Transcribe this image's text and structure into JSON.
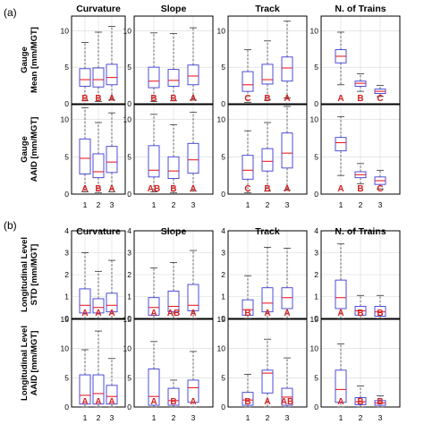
{
  "panel_labels": [
    "(a)",
    "(b)"
  ],
  "chart_data": {
    "type": "boxplot",
    "sections": [
      {
        "label": "(a)",
        "column_titles": [
          "Curvature",
          "Slope",
          "Track",
          "N. of Trains"
        ],
        "rows": [
          {
            "ylabel": [
              "Gauge",
              "Mean [mm/MGT]"
            ],
            "ylim": [
              0,
              12
            ],
            "yticks": [
              0,
              5,
              10
            ],
            "panels": [
              {
                "categories": [
                  "1",
                  "2",
                  "3"
                ],
                "letters": [
                  "B",
                  "B",
                  "A"
                ],
                "boxes": [
                  {
                    "whislo": 0.4,
                    "q1": 2.4,
                    "med": 3.3,
                    "q3": 4.8,
                    "whishi": 8.4
                  },
                  {
                    "whislo": 0.3,
                    "q1": 2.3,
                    "med": 3.3,
                    "q3": 4.9,
                    "whishi": 9.8
                  },
                  {
                    "whislo": 0.5,
                    "q1": 2.6,
                    "med": 3.6,
                    "q3": 5.4,
                    "whishi": 10.6
                  }
                ]
              },
              {
                "categories": [
                  "1",
                  "2",
                  "3"
                ],
                "letters": [
                  "B",
                  "B",
                  "A"
                ],
                "boxes": [
                  {
                    "whislo": 0.3,
                    "q1": 2.2,
                    "med": 3.1,
                    "q3": 5.0,
                    "whishi": 9.7
                  },
                  {
                    "whislo": 0.4,
                    "q1": 2.4,
                    "med": 3.2,
                    "q3": 4.7,
                    "whishi": 9.6
                  },
                  {
                    "whislo": 0.5,
                    "q1": 2.6,
                    "med": 3.8,
                    "q3": 5.3,
                    "whishi": 10.4
                  }
                ]
              },
              {
                "categories": [
                  "1",
                  "2",
                  "3"
                ],
                "letters": [
                  "C",
                  "B",
                  "A"
                ],
                "boxes": [
                  {
                    "whislo": 0.2,
                    "q1": 1.7,
                    "med": 2.6,
                    "q3": 4.4,
                    "whishi": 7.4
                  },
                  {
                    "whislo": 0.5,
                    "q1": 2.7,
                    "med": 3.3,
                    "q3": 5.4,
                    "whishi": 8.6
                  },
                  {
                    "whislo": 0.8,
                    "q1": 3.1,
                    "med": 4.9,
                    "q3": 6.4,
                    "whishi": 11.3
                  }
                ]
              },
              {
                "categories": [
                  "1",
                  "2",
                  "3"
                ],
                "letters": [
                  "A",
                  "B",
                  "C"
                ],
                "boxes": [
                  {
                    "whislo": 2.6,
                    "q1": 5.6,
                    "med": 6.5,
                    "q3": 7.4,
                    "whishi": 9.8
                  },
                  {
                    "whislo": 1.7,
                    "q1": 2.4,
                    "med": 2.8,
                    "q3": 3.1,
                    "whishi": 4.1
                  },
                  {
                    "whislo": 1.0,
                    "q1": 1.4,
                    "med": 1.7,
                    "q3": 2.0,
                    "whishi": 2.5
                  }
                ]
              }
            ]
          },
          {
            "ylabel": [
              "Gauge",
              "AAID [mm/MGT]"
            ],
            "ylim": [
              0,
              12
            ],
            "yticks": [
              0,
              5,
              10
            ],
            "panels": [
              {
                "categories": [
                  "1",
                  "2",
                  "3"
                ],
                "letters": [
                  "A",
                  "B",
                  "A"
                ],
                "boxes": [
                  {
                    "whislo": 0.3,
                    "q1": 2.7,
                    "med": 4.8,
                    "q3": 7.4,
                    "whishi": 11.6
                  },
                  {
                    "whislo": 0.2,
                    "q1": 2.2,
                    "med": 3.0,
                    "q3": 5.4,
                    "whishi": 9.6
                  },
                  {
                    "whislo": 0.3,
                    "q1": 2.9,
                    "med": 4.3,
                    "q3": 6.4,
                    "whishi": 10.9
                  }
                ]
              },
              {
                "categories": [
                  "1",
                  "2",
                  "3"
                ],
                "letters": [
                  "AB",
                  "B",
                  "A"
                ],
                "boxes": [
                  {
                    "whislo": 0.3,
                    "q1": 2.3,
                    "med": 3.2,
                    "q3": 6.5,
                    "whishi": 10.7
                  },
                  {
                    "whislo": 0.2,
                    "q1": 2.1,
                    "med": 3.1,
                    "q3": 5.0,
                    "whishi": 9.3
                  },
                  {
                    "whislo": 0.4,
                    "q1": 2.8,
                    "med": 4.6,
                    "q3": 6.8,
                    "whishi": 11.0
                  }
                ]
              },
              {
                "categories": [
                  "1",
                  "2",
                  "3"
                ],
                "letters": [
                  "C",
                  "B",
                  "A"
                ],
                "boxes": [
                  {
                    "whislo": 0.2,
                    "q1": 2.0,
                    "med": 3.2,
                    "q3": 5.2,
                    "whishi": 8.5
                  },
                  {
                    "whislo": 0.4,
                    "q1": 3.1,
                    "med": 4.4,
                    "q3": 6.1,
                    "whishi": 9.6
                  },
                  {
                    "whislo": 0.5,
                    "q1": 3.5,
                    "med": 5.5,
                    "q3": 8.2,
                    "whishi": 12.3
                  }
                ]
              },
              {
                "categories": [
                  "1",
                  "2",
                  "3"
                ],
                "letters": [
                  "A",
                  "B",
                  "C"
                ],
                "boxes": [
                  {
                    "whislo": 2.5,
                    "q1": 5.8,
                    "med": 6.9,
                    "q3": 7.6,
                    "whishi": 10.4
                  },
                  {
                    "whislo": 1.4,
                    "q1": 2.2,
                    "med": 2.6,
                    "q3": 3.0,
                    "whishi": 4.1
                  },
                  {
                    "whislo": 0.7,
                    "q1": 1.3,
                    "med": 1.8,
                    "q3": 2.3,
                    "whishi": 3.2
                  }
                ]
              }
            ]
          }
        ]
      },
      {
        "label": "(b)",
        "column_titles": [
          "Curvature",
          "Slope",
          "Track",
          "N. of Trains"
        ],
        "rows": [
          {
            "ylabel": [
              "Longitudinal Level",
              "STD [mm/MGT]"
            ],
            "ylim": [
              0,
              4
            ],
            "yticks": [
              0,
              1,
              2,
              3,
              4
            ],
            "panels": [
              {
                "categories": [
                  "1",
                  "2",
                  "3"
                ],
                "letters": [
                  "A",
                  "A",
                  "A"
                ],
                "boxes": [
                  {
                    "whislo": 0.0,
                    "q1": 0.25,
                    "med": 0.6,
                    "q3": 1.35,
                    "whishi": 3.0
                  },
                  {
                    "whislo": 0.0,
                    "q1": 0.25,
                    "med": 0.5,
                    "q3": 0.9,
                    "whishi": 2.15
                  },
                  {
                    "whislo": 0.0,
                    "q1": 0.3,
                    "med": 0.6,
                    "q3": 1.15,
                    "whishi": 2.65
                  }
                ]
              },
              {
                "categories": [
                  "1",
                  "2",
                  "3"
                ],
                "letters": [
                  "A",
                  "AB",
                  "A"
                ],
                "boxes": [
                  {
                    "whislo": 0.0,
                    "q1": 0.15,
                    "med": 0.5,
                    "q3": 0.95,
                    "whishi": 2.3
                  },
                  {
                    "whislo": 0.0,
                    "q1": 0.3,
                    "med": 0.55,
                    "q3": 1.25,
                    "whishi": 2.55
                  },
                  {
                    "whislo": 0.0,
                    "q1": 0.35,
                    "med": 0.6,
                    "q3": 1.55,
                    "whishi": 3.1
                  }
                ]
              },
              {
                "categories": [
                  "1",
                  "2",
                  "3"
                ],
                "letters": [
                  "B",
                  "A",
                  "A"
                ],
                "boxes": [
                  {
                    "whislo": 0.0,
                    "q1": 0.15,
                    "med": 0.4,
                    "q3": 0.85,
                    "whishi": 1.95
                  },
                  {
                    "whislo": 0.0,
                    "q1": 0.3,
                    "med": 0.7,
                    "q3": 1.4,
                    "whishi": 3.25
                  },
                  {
                    "whislo": 0.0,
                    "q1": 0.45,
                    "med": 0.95,
                    "q3": 1.4,
                    "whishi": 3.2
                  }
                ]
              },
              {
                "categories": [
                  "1",
                  "2",
                  "3"
                ],
                "letters": [
                  "A",
                  "B",
                  "B"
                ],
                "boxes": [
                  {
                    "whislo": 0.0,
                    "q1": 0.45,
                    "med": 0.95,
                    "q3": 1.75,
                    "whishi": 3.4
                  },
                  {
                    "whislo": 0.0,
                    "q1": 0.15,
                    "med": 0.35,
                    "q3": 0.55,
                    "whishi": 1.05
                  },
                  {
                    "whislo": 0.0,
                    "q1": 0.1,
                    "med": 0.3,
                    "q3": 0.55,
                    "whishi": 1.05
                  }
                ]
              }
            ]
          },
          {
            "ylabel": [
              "Longitudinal Level",
              "AAID [mm/MGT]"
            ],
            "ylim": [
              0,
              15
            ],
            "yticks": [
              0,
              5,
              10,
              15
            ],
            "panels": [
              {
                "categories": [
                  "1",
                  "2",
                  "3"
                ],
                "letters": [
                  "A",
                  "A",
                  "A"
                ],
                "boxes": [
                  {
                    "whislo": 0.0,
                    "q1": 0.5,
                    "med": 2.0,
                    "q3": 5.5,
                    "whishi": 9.8
                  },
                  {
                    "whislo": 0.0,
                    "q1": 0.5,
                    "med": 2.3,
                    "q3": 5.5,
                    "whishi": 13.0
                  },
                  {
                    "whislo": 0.0,
                    "q1": 0.5,
                    "med": 1.8,
                    "q3": 3.7,
                    "whishi": 8.3
                  }
                ]
              },
              {
                "categories": [
                  "1",
                  "2",
                  "3"
                ],
                "letters": [
                  "A",
                  "B",
                  "A"
                ],
                "boxes": [
                  {
                    "whislo": 0.0,
                    "q1": 0.3,
                    "med": 1.8,
                    "q3": 6.5,
                    "whishi": 11.2
                  },
                  {
                    "whislo": 0.0,
                    "q1": 0.3,
                    "med": 1.1,
                    "q3": 3.2,
                    "whishi": 4.6
                  },
                  {
                    "whislo": 0.0,
                    "q1": 0.8,
                    "med": 3.3,
                    "q3": 4.6,
                    "whishi": 9.5
                  }
                ]
              },
              {
                "categories": [
                  "1",
                  "2",
                  "3"
                ],
                "letters": [
                  "B",
                  "A",
                  "AB"
                ],
                "boxes": [
                  {
                    "whislo": 0.0,
                    "q1": 0.3,
                    "med": 1.2,
                    "q3": 2.5,
                    "whishi": 5.6
                  },
                  {
                    "whislo": 0.0,
                    "q1": 2.4,
                    "med": 5.8,
                    "q3": 6.3,
                    "whishi": 11.6
                  },
                  {
                    "whislo": 0.0,
                    "q1": 0.3,
                    "med": 1.7,
                    "q3": 3.2,
                    "whishi": 8.4
                  }
                ]
              },
              {
                "categories": [
                  "1",
                  "2",
                  "3"
                ],
                "letters": [
                  "A",
                  "B",
                  "B"
                ],
                "boxes": [
                  {
                    "whislo": 0.0,
                    "q1": 0.8,
                    "med": 3.0,
                    "q3": 6.3,
                    "whishi": 10.8
                  },
                  {
                    "whislo": 0.0,
                    "q1": 0.4,
                    "med": 0.9,
                    "q3": 1.6,
                    "whishi": 3.6
                  },
                  {
                    "whislo": 0.0,
                    "q1": 0.3,
                    "med": 0.7,
                    "q3": 1.1,
                    "whishi": 1.9
                  }
                ]
              }
            ]
          }
        ]
      }
    ],
    "colors": {
      "box": "#3b3bd6",
      "median": "#e8202a",
      "whisker": "#444444",
      "letters": "#d42020",
      "frame": "#000000",
      "grid": "#d8d8d8"
    },
    "grid": true
  }
}
